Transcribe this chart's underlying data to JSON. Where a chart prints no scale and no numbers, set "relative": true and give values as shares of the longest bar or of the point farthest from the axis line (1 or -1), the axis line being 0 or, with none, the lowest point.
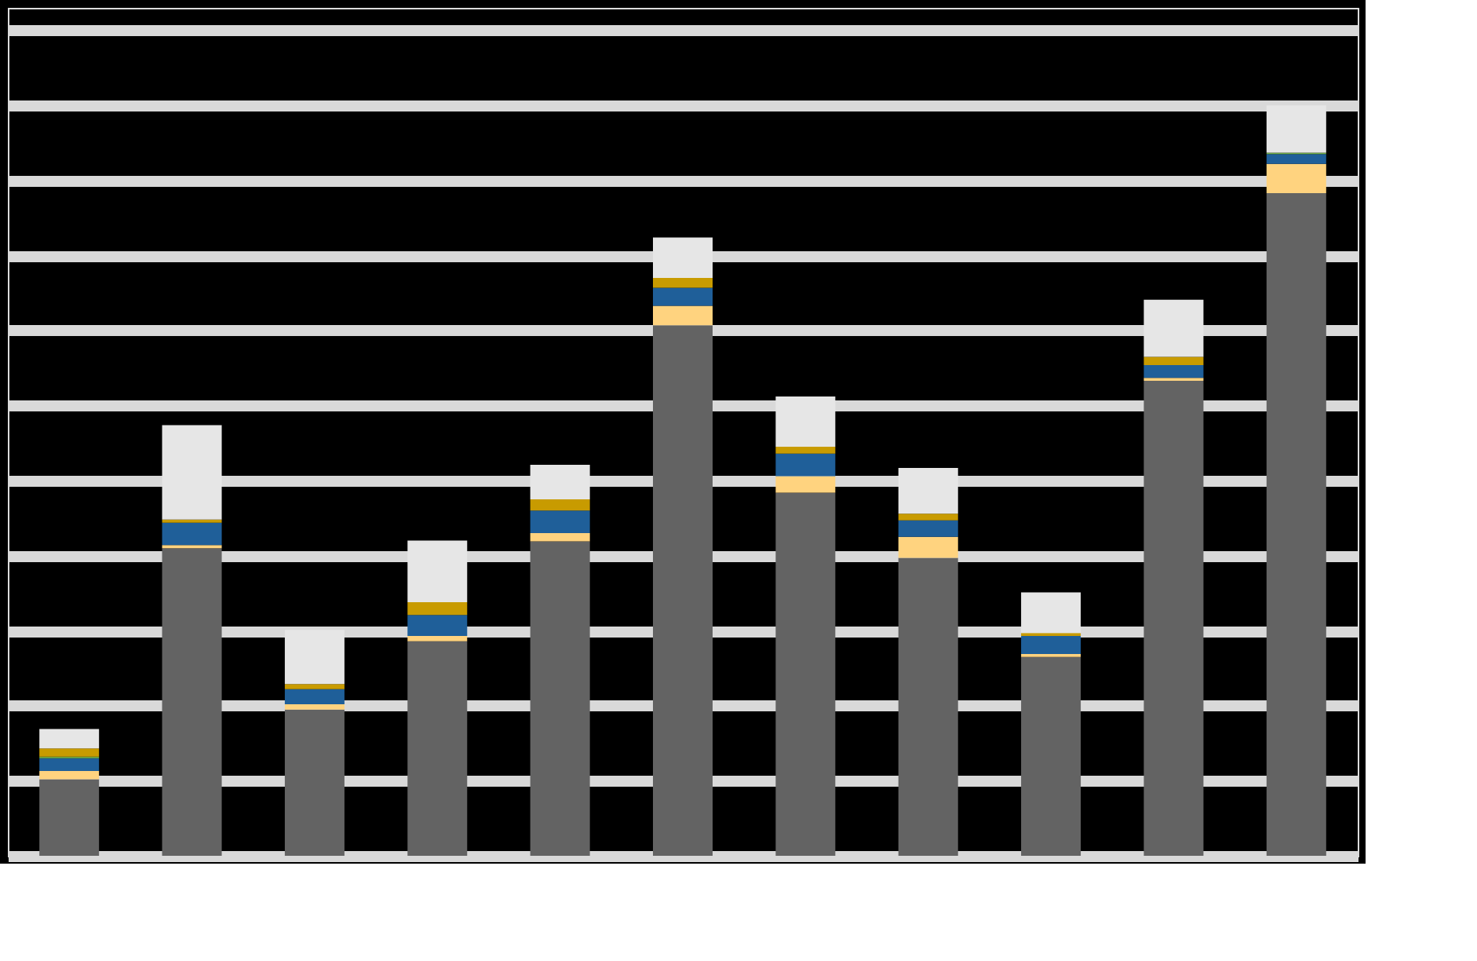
{
  "chart_data": {
    "type": "bar",
    "stacked": true,
    "relative": true,
    "grid": "y",
    "tick_labels": false,
    "categories": [
      null,
      null,
      null,
      null,
      null,
      null,
      null,
      null,
      null,
      null,
      null
    ],
    "series": [
      {
        "color": "#636363",
        "values": [
          0.102,
          0.41,
          0.195,
          0.286,
          0.419,
          0.707,
          0.484,
          0.397,
          0.265,
          0.633,
          0.883
        ]
      },
      {
        "color": "#ffd37f",
        "values": [
          0.011,
          0.004,
          0.007,
          0.007,
          0.011,
          0.026,
          0.022,
          0.028,
          0.004,
          0.004,
          0.039
        ]
      },
      {
        "color": "#1f5f99",
        "values": [
          0.017,
          0.03,
          0.02,
          0.028,
          0.03,
          0.024,
          0.03,
          0.022,
          0.024,
          0.017,
          0.013
        ]
      },
      {
        "color": "#70ad47",
        "values": [
          0.002,
          0,
          0,
          0,
          0,
          0,
          0,
          0,
          0,
          0,
          0.002
        ]
      },
      {
        "color": "#c89b00",
        "values": [
          0.011,
          0.004,
          0.007,
          0.017,
          0.015,
          0.013,
          0.009,
          0.009,
          0.004,
          0.011,
          0
        ]
      },
      {
        "color": "#ffff00",
        "values": [
          0,
          0,
          0,
          0,
          0,
          0,
          0,
          0,
          0,
          0,
          0
        ]
      },
      {
        "color": "#c8a000",
        "values": [
          0,
          0,
          0,
          0,
          0,
          0,
          0,
          0,
          0,
          0,
          0
        ]
      },
      {
        "color": "#f4a460",
        "values": [
          0,
          0,
          0,
          0,
          0,
          0,
          0,
          0,
          0,
          0,
          0
        ]
      },
      {
        "color": "#c00000",
        "values": [
          0,
          0,
          0,
          0,
          0,
          0,
          0,
          0,
          0,
          0,
          0
        ]
      },
      {
        "color": "#e6e6e6",
        "values": [
          0.026,
          0.126,
          0.072,
          0.082,
          0.046,
          0.054,
          0.067,
          0.061,
          0.054,
          0.076,
          0.063
        ]
      }
    ]
  }
}
